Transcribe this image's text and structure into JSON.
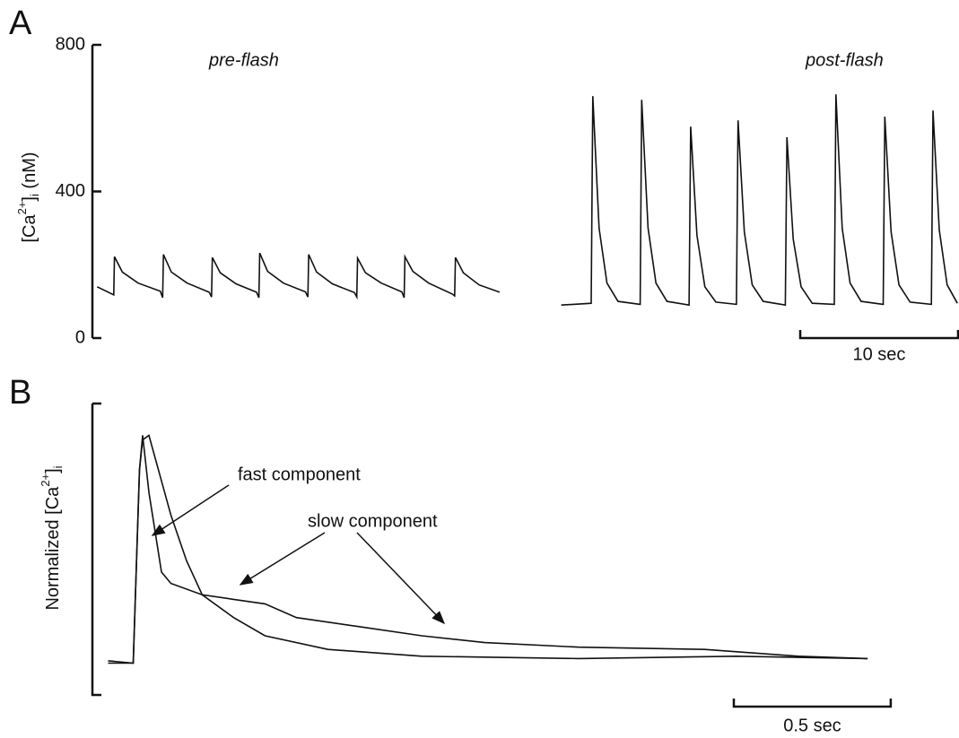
{
  "chart_data": [
    {
      "type": "line",
      "panel": "A",
      "ylabel_parts": [
        "[Ca",
        "2+",
        "]",
        "i",
        " (nM)"
      ],
      "xlim": [
        -0.3,
        54.6
      ],
      "ylim": [
        0,
        800
      ],
      "yticks": [
        0,
        400,
        800
      ],
      "scalebar": {
        "length": 10,
        "label": "10 sec"
      },
      "series": [
        {
          "name": "pre-flash",
          "color": "#111111",
          "x": [
            0,
            1.05,
            1.1,
            1.6,
            2.6,
            4.0,
            4.15,
            4.2,
            4.7,
            5.7,
            7.1,
            7.25,
            7.3,
            7.8,
            8.8,
            10.1,
            10.25,
            10.3,
            10.8,
            11.8,
            13.2,
            13.35,
            13.4,
            13.9,
            14.9,
            16.3,
            16.45,
            16.5,
            17.0,
            18.0,
            19.3,
            19.45,
            19.5,
            20.0,
            21.0,
            22.5,
            22.65,
            22.7,
            23.2,
            24.2,
            25.5
          ],
          "values": [
            140,
            118,
            222,
            180,
            150,
            128,
            110,
            228,
            180,
            150,
            125,
            112,
            220,
            178,
            148,
            125,
            110,
            232,
            182,
            150,
            126,
            112,
            228,
            180,
            148,
            124,
            112,
            218,
            178,
            150,
            126,
            110,
            222,
            182,
            150,
            120,
            115,
            220,
            178,
            145,
            125
          ]
        },
        {
          "name": "post-flash",
          "color": "#111111",
          "x": [
            29.4,
            31.3,
            31.4,
            31.8,
            32.3,
            33.0,
            34.4,
            34.5,
            34.9,
            35.4,
            36.1,
            37.5,
            37.6,
            38.0,
            38.5,
            39.2,
            40.5,
            40.6,
            41.0,
            41.5,
            42.2,
            43.6,
            43.7,
            44.1,
            44.6,
            45.3,
            46.7,
            46.8,
            47.2,
            47.7,
            48.4,
            49.8,
            49.9,
            50.3,
            50.8,
            51.5,
            52.85,
            52.95,
            53.35,
            53.85,
            54.5
          ],
          "values": [
            90,
            95,
            660,
            300,
            150,
            100,
            92,
            650,
            300,
            150,
            100,
            90,
            577,
            280,
            140,
            98,
            92,
            594,
            290,
            145,
            100,
            90,
            548,
            270,
            140,
            95,
            92,
            665,
            300,
            150,
            100,
            92,
            604,
            290,
            145,
            98,
            92,
            621,
            295,
            145,
            95
          ]
        }
      ]
    },
    {
      "type": "line",
      "panel": "B",
      "ylabel_parts": [
        "Normalized [Ca",
        "2+",
        "]",
        "i"
      ],
      "xlim": [
        -0.05,
        2.7
      ],
      "ylim": [
        -0.14,
        1.14
      ],
      "scalebar": {
        "length": 0.5,
        "label": "0.5 sec"
      },
      "annotations": [
        "fast component",
        "slow component"
      ],
      "series": [
        {
          "color": "#111111",
          "x": [
            0,
            0.08,
            0.1,
            0.11,
            0.13,
            0.17,
            0.2,
            0.3,
            0.4,
            0.5,
            0.7,
            1.0,
            1.5,
            2.0,
            2.42
          ],
          "values": [
            0,
            0,
            0.85,
            1.0,
            0.75,
            0.4,
            0.35,
            0.3,
            0.2,
            0.12,
            0.06,
            0.03,
            0.02,
            0.03,
            0.02
          ]
        },
        {
          "color": "#111111",
          "x": [
            0,
            0.08,
            0.1,
            0.11,
            0.13,
            0.17,
            0.2,
            0.25,
            0.3,
            0.4,
            0.5,
            0.6,
            0.8,
            1.0,
            1.2,
            1.5,
            1.9,
            2.2,
            2.42
          ],
          "values": [
            0.01,
            0,
            0.85,
            0.98,
            1.0,
            0.8,
            0.65,
            0.45,
            0.3,
            0.28,
            0.26,
            0.2,
            0.16,
            0.12,
            0.09,
            0.07,
            0.06,
            0.03,
            0.02
          ]
        }
      ]
    }
  ]
}
